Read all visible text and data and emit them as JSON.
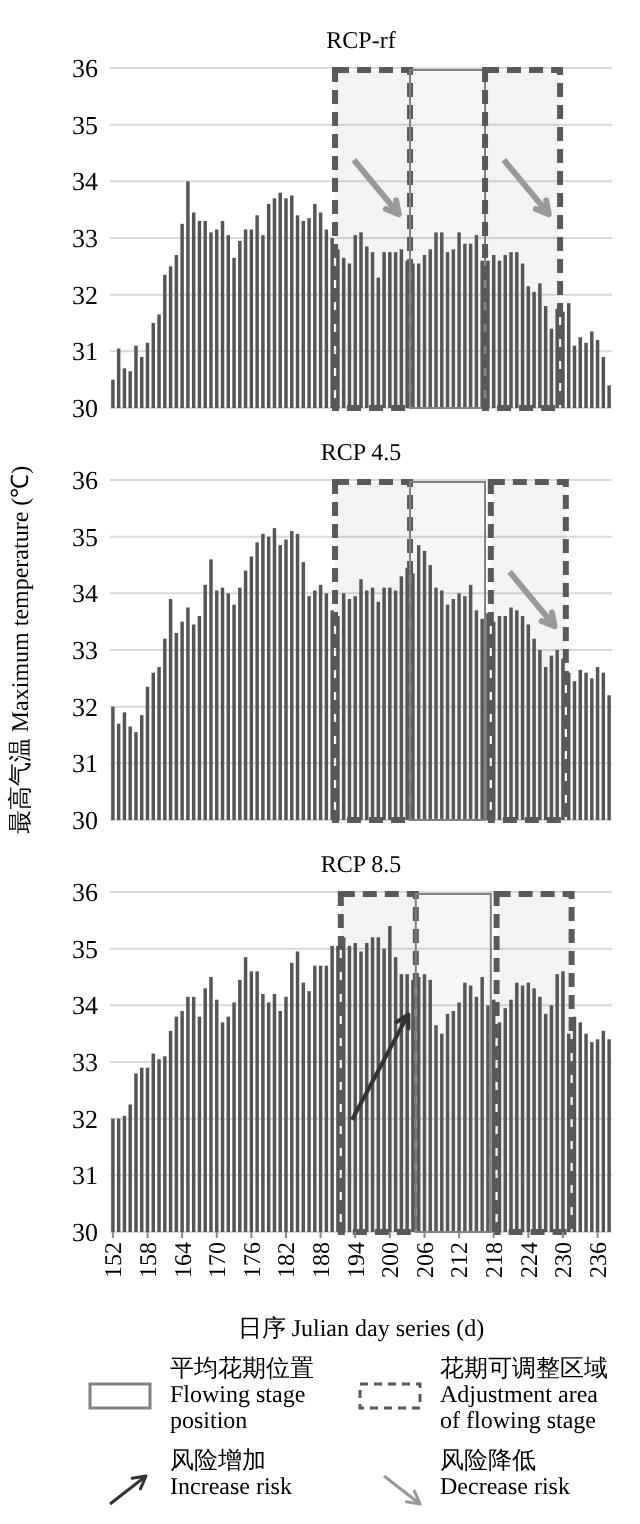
{
  "chart_data": [
    {
      "type": "bar",
      "title": "RCP-rf",
      "x": [
        152,
        153,
        154,
        155,
        156,
        157,
        158,
        159,
        160,
        161,
        162,
        163,
        164,
        165,
        166,
        167,
        168,
        169,
        170,
        171,
        172,
        173,
        174,
        175,
        176,
        177,
        178,
        179,
        180,
        181,
        182,
        183,
        184,
        185,
        186,
        187,
        188,
        189,
        190,
        191,
        192,
        193,
        194,
        195,
        196,
        197,
        198,
        199,
        200,
        201,
        202,
        203,
        204,
        205,
        206,
        207,
        208,
        209,
        210,
        211,
        212,
        213,
        214,
        215,
        216,
        217,
        218,
        219,
        220,
        221,
        222,
        223,
        224,
        225,
        226,
        227,
        228,
        229,
        230,
        231,
        232,
        233,
        234,
        235,
        236,
        237,
        238
      ],
      "series": [
        {
          "color": "#555555",
          "values": [
            30.5,
            31.05,
            30.7,
            30.65,
            31.1,
            30.9,
            31.15,
            31.5,
            31.65,
            32.35,
            32.5,
            32.7,
            33.25,
            34.0,
            33.45,
            33.3,
            33.3,
            33.1,
            33.15,
            33.3,
            33.05,
            32.65,
            32.95,
            33.15,
            33.15,
            33.4,
            33.05,
            33.6,
            33.7,
            33.8,
            33.7,
            33.75,
            33.4,
            33.3,
            33.35,
            33.6,
            33.45,
            33.15,
            33.0,
            32.8,
            32.65,
            32.55,
            33.05,
            33.1,
            32.85,
            32.75,
            32.3,
            32.75,
            32.75,
            32.75,
            32.8,
            32.6,
            32.55,
            32.55,
            32.7,
            32.8,
            33.1,
            33.1,
            32.75,
            32.8,
            33.1,
            32.9,
            32.9,
            33.05,
            32.6,
            32.6,
            32.7,
            32.6,
            32.7,
            32.75,
            32.75,
            32.55,
            32.15,
            32.05,
            32.2,
            31.8,
            31.4,
            31.75,
            31.7,
            31.85,
            31.1,
            31.25,
            31.15,
            31.35,
            31.2,
            30.9,
            30.4
          ]
        }
      ],
      "xlim": [
        151.5,
        238.5
      ],
      "ylim": [
        30,
        36
      ],
      "yticks": [
        30,
        31,
        32,
        33,
        34,
        35,
        36
      ],
      "grid": "y",
      "tick_labels": "y",
      "bands": [
        {
          "axis": "x",
          "from": 190.5,
          "to": 203.5,
          "color": "#595959"
        },
        {
          "axis": "x",
          "from": 203.5,
          "to": 216.5,
          "color": "#808080"
        },
        {
          "axis": "x",
          "from": 216.5,
          "to": 229.5,
          "color": "#595959"
        }
      ]
    },
    {
      "type": "bar",
      "title": "RCP 4.5",
      "ylabel": "最高气温 Maximum temperature (℃)",
      "x": [
        152,
        153,
        154,
        155,
        156,
        157,
        158,
        159,
        160,
        161,
        162,
        163,
        164,
        165,
        166,
        167,
        168,
        169,
        170,
        171,
        172,
        173,
        174,
        175,
        176,
        177,
        178,
        179,
        180,
        181,
        182,
        183,
        184,
        185,
        186,
        187,
        188,
        189,
        190,
        191,
        192,
        193,
        194,
        195,
        196,
        197,
        198,
        199,
        200,
        201,
        202,
        203,
        204,
        205,
        206,
        207,
        208,
        209,
        210,
        211,
        212,
        213,
        214,
        215,
        216,
        217,
        218,
        219,
        220,
        221,
        222,
        223,
        224,
        225,
        226,
        227,
        228,
        229,
        230,
        231,
        232,
        233,
        234,
        235,
        236,
        237,
        238
      ],
      "series": [
        {
          "color": "#555555",
          "values": [
            32.0,
            31.7,
            31.9,
            31.65,
            31.55,
            31.85,
            32.35,
            32.6,
            32.7,
            33.2,
            33.9,
            33.3,
            33.5,
            33.75,
            33.45,
            33.6,
            34.15,
            34.6,
            34.05,
            34.1,
            34.0,
            33.8,
            34.1,
            34.4,
            34.65,
            34.9,
            35.05,
            35.0,
            35.15,
            34.85,
            34.95,
            35.1,
            35.05,
            34.55,
            33.95,
            34.05,
            34.15,
            34.0,
            33.7,
            33.6,
            34.0,
            33.9,
            33.95,
            34.25,
            34.05,
            34.1,
            33.85,
            34.1,
            34.1,
            34.05,
            34.3,
            34.45,
            34.35,
            34.85,
            34.75,
            34.5,
            34.1,
            34.05,
            33.8,
            33.9,
            34.0,
            33.95,
            34.15,
            33.7,
            33.55,
            33.65,
            33.5,
            33.6,
            33.6,
            33.75,
            33.7,
            33.6,
            33.45,
            33.2,
            33.0,
            32.7,
            32.9,
            33.0,
            32.85,
            32.6,
            32.45,
            32.65,
            32.6,
            32.5,
            32.7,
            32.6,
            32.2
          ]
        }
      ],
      "xlim": [
        151.5,
        238.5
      ],
      "ylim": [
        30,
        36
      ],
      "yticks": [
        30,
        31,
        32,
        33,
        34,
        35,
        36
      ],
      "grid": "y",
      "tick_labels": "y",
      "bands": [
        {
          "axis": "x",
          "from": 190.5,
          "to": 203.5,
          "color": "#595959"
        },
        {
          "axis": "x",
          "from": 203.5,
          "to": 216.5,
          "color": "#808080"
        },
        {
          "axis": "x",
          "from": 217.5,
          "to": 230.5,
          "color": "#595959"
        }
      ]
    },
    {
      "type": "bar",
      "title": "RCP 8.5",
      "xlabel": "日序 Julian day series (d)",
      "x": [
        152,
        153,
        154,
        155,
        156,
        157,
        158,
        159,
        160,
        161,
        162,
        163,
        164,
        165,
        166,
        167,
        168,
        169,
        170,
        171,
        172,
        173,
        174,
        175,
        176,
        177,
        178,
        179,
        180,
        181,
        182,
        183,
        184,
        185,
        186,
        187,
        188,
        189,
        190,
        191,
        192,
        193,
        194,
        195,
        196,
        197,
        198,
        199,
        200,
        201,
        202,
        203,
        204,
        205,
        206,
        207,
        208,
        209,
        210,
        211,
        212,
        213,
        214,
        215,
        216,
        217,
        218,
        219,
        220,
        221,
        222,
        223,
        224,
        225,
        226,
        227,
        228,
        229,
        230,
        231,
        232,
        233,
        234,
        235,
        236,
        237,
        238
      ],
      "series": [
        {
          "color": "#555555",
          "values": [
            32.0,
            32.0,
            32.05,
            32.25,
            32.8,
            32.9,
            32.9,
            33.15,
            33.05,
            33.1,
            33.55,
            33.8,
            33.9,
            34.15,
            34.15,
            33.8,
            34.3,
            34.5,
            34.1,
            33.7,
            33.8,
            34.05,
            34.45,
            34.85,
            34.6,
            34.6,
            34.2,
            34.05,
            34.2,
            33.9,
            34.15,
            34.75,
            34.95,
            34.4,
            34.25,
            34.7,
            34.7,
            34.7,
            35.05,
            35.05,
            35.2,
            35.05,
            35.1,
            34.95,
            35.1,
            35.2,
            35.2,
            35.0,
            35.4,
            34.85,
            34.55,
            34.55,
            34.45,
            34.5,
            34.55,
            34.45,
            33.65,
            33.5,
            33.85,
            33.9,
            34.05,
            34.4,
            34.35,
            34.15,
            34.5,
            34.0,
            34.1,
            33.7,
            33.95,
            34.1,
            34.4,
            34.35,
            34.4,
            34.3,
            34.15,
            33.85,
            34.0,
            34.55,
            34.6,
            33.5,
            33.8,
            33.7,
            33.5,
            33.35,
            33.4,
            33.55,
            33.4
          ]
        }
      ],
      "xlim": [
        151.5,
        238.5
      ],
      "xticks": [
        152,
        158,
        164,
        170,
        176,
        182,
        188,
        194,
        200,
        206,
        212,
        218,
        224,
        230,
        236
      ],
      "ylim": [
        30,
        36
      ],
      "yticks": [
        30,
        31,
        32,
        33,
        34,
        35,
        36
      ],
      "grid": "y",
      "bands": [
        {
          "axis": "x",
          "from": 191.5,
          "to": 204.5,
          "color": "#595959",
          "label": "花期可调整区域 Adjustment area of flowing stage"
        },
        {
          "axis": "x",
          "from": 204.5,
          "to": 217.5,
          "color": "#808080",
          "label": "平均花期位置 Flowing stage position"
        },
        {
          "axis": "x",
          "from": 218.5,
          "to": 231.5,
          "color": "#595959"
        }
      ],
      "annotations": [
        "风险增加 Increase risk",
        "风险降低 Decrease risk"
      ],
      "legend": "bottom"
    }
  ]
}
